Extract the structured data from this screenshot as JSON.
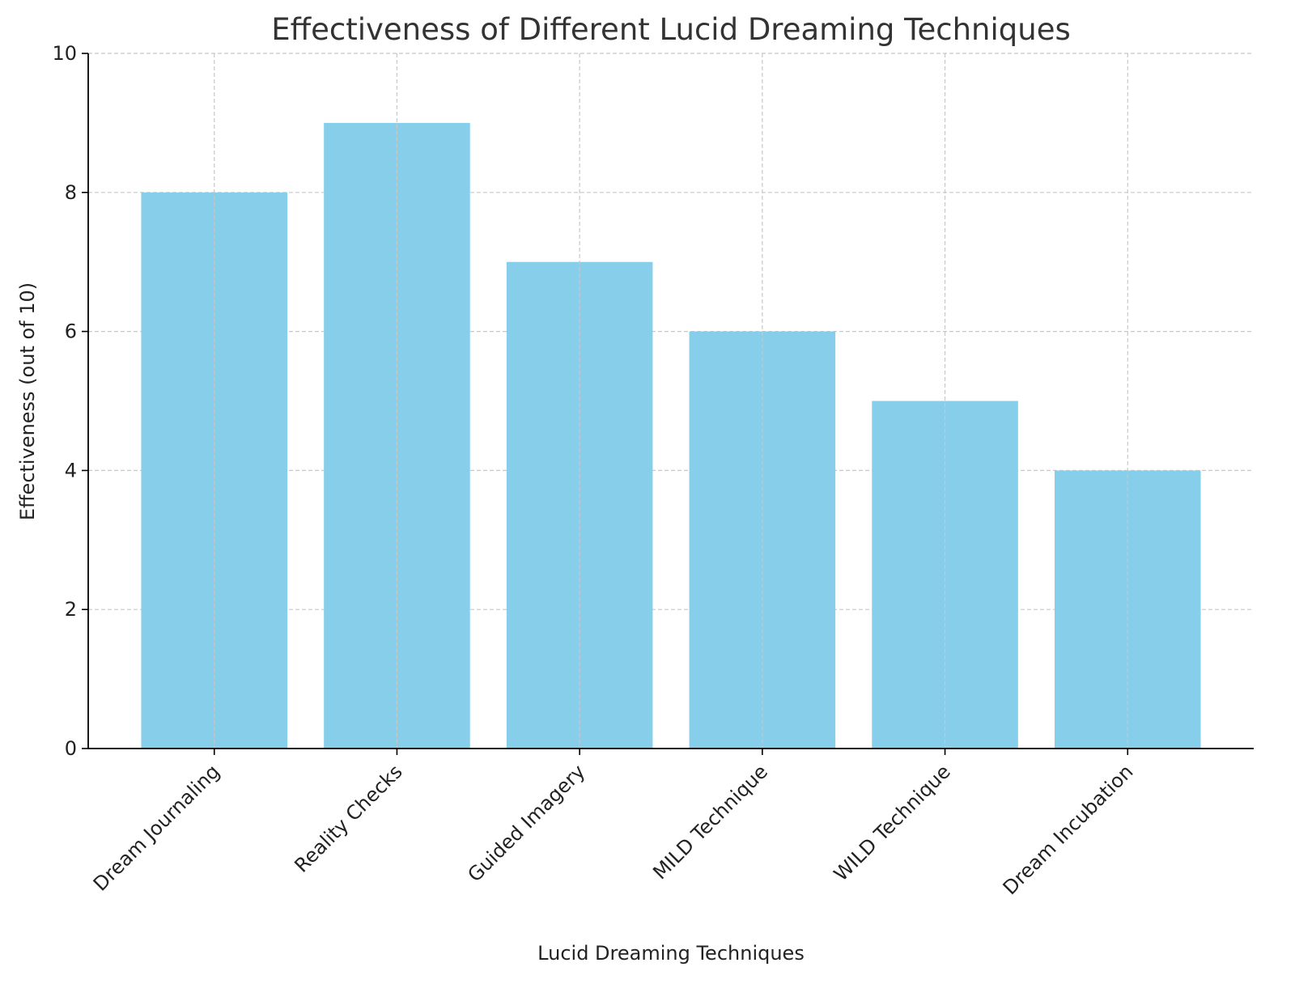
{
  "chart_data": {
    "type": "bar",
    "title": "Effectiveness of Different Lucid Dreaming Techniques",
    "xlabel": "Lucid Dreaming Techniques",
    "ylabel": "Effectiveness (out of 10)",
    "categories": [
      "Dream Journaling",
      "Reality Checks",
      "Guided Imagery",
      "MILD Technique",
      "WILD Technique",
      "Dream Incubation"
    ],
    "values": [
      8,
      9,
      7,
      6,
      5,
      4
    ],
    "ylim": [
      0,
      10
    ],
    "yticks": [
      "0",
      "2",
      "4",
      "6",
      "8",
      "10"
    ],
    "grid": true,
    "bar_color": "#87CEEB"
  }
}
